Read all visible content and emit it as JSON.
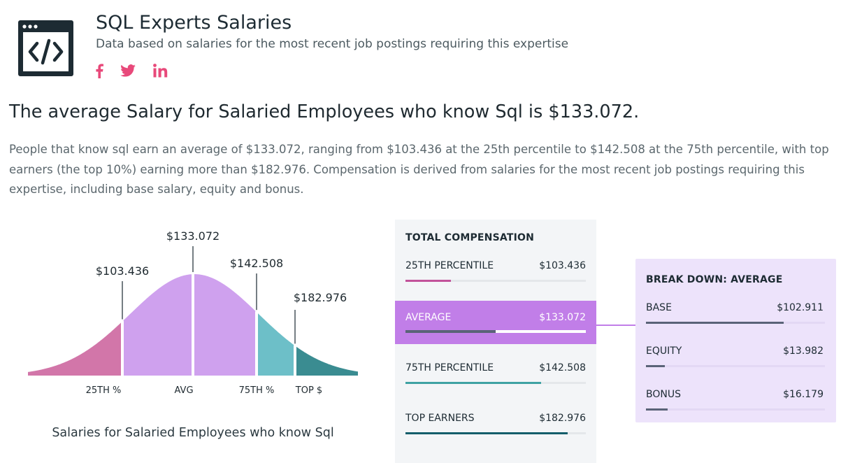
{
  "header": {
    "title": "SQL Experts Salaries",
    "subtitle": "Data based on salaries for the most recent job postings requiring this expertise",
    "social": [
      {
        "name": "facebook-icon",
        "label": "f"
      },
      {
        "name": "twitter-icon",
        "label": ""
      },
      {
        "name": "linkedin-icon",
        "label": "in"
      }
    ],
    "social_color": "#e8497a",
    "logo_icon": "code-window-icon"
  },
  "headline": "The average Salary for Salaried Employees who know Sql is $133.072.",
  "description": "People that know sql earn an average of $133.072, ranging from $103.436 at the 25th percentile to $142.508 at the 75th percentile, with top earners (the top 10%) earning more than $182.976. Compensation is derived from salaries for the most recent job postings requiring this expertise, including base salary, equity and bonus.",
  "chart_data": {
    "type": "area",
    "caption": "Salaries for Salaried Employees who know Sql",
    "markers": [
      {
        "tick": "25TH %",
        "value_label": "$103.436",
        "value": 103436,
        "color": "#d276a9"
      },
      {
        "tick": "AVG",
        "value_label": "$133.072",
        "value": 133072,
        "color": "#cfa1ee"
      },
      {
        "tick": "75TH %",
        "value_label": "$142.508",
        "value": 142508,
        "color": "#6dbfc8"
      },
      {
        "tick": "TOP $",
        "value_label": "$182.976",
        "value": 182976,
        "color": "#3a8c91"
      }
    ]
  },
  "compensation": {
    "title": "TOTAL COMPENSATION",
    "rows": [
      {
        "label": "25TH PERCENTILE",
        "value": "$103.436",
        "fraction": 0.25,
        "color": "#c2529a",
        "active": false
      },
      {
        "label": "AVERAGE",
        "value": "$133.072",
        "fraction": 0.5,
        "color": "#5a6378",
        "active": true
      },
      {
        "label": "75TH PERCENTILE",
        "value": "$142.508",
        "fraction": 0.75,
        "color": "#3fa2a3",
        "active": false
      },
      {
        "label": "TOP EARNERS",
        "value": "$182.976",
        "fraction": 0.9,
        "color": "#145e6b",
        "active": false
      }
    ],
    "highlight_color": "#c17ee8"
  },
  "breakdown": {
    "title": "BREAK DOWN: AVERAGE",
    "rows": [
      {
        "label": "BASE",
        "value": "$102.911",
        "fraction": 0.77,
        "color": "#5a6378"
      },
      {
        "label": "EQUITY",
        "value": "$13.982",
        "fraction": 0.105,
        "color": "#5a6378"
      },
      {
        "label": "BONUS",
        "value": "$16.179",
        "fraction": 0.12,
        "color": "#5a6378"
      }
    ]
  }
}
